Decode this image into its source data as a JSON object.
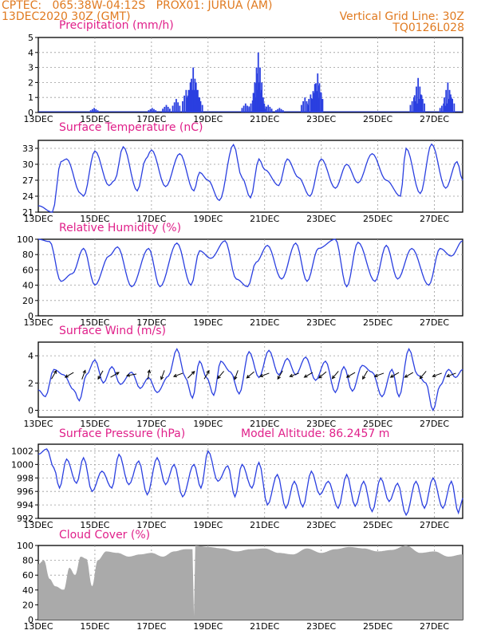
{
  "header": {
    "line1_left": "CPTEC:   065:38W-04:12S   PROX01: JURUA (AM)",
    "line2_left": "13DEC2020 30Z (GMT)",
    "line2_right": "Vertical Grid Line: 30Z",
    "line3_right": "TQ0126L028"
  },
  "colors": {
    "line": "#2a3fe0",
    "bar": "#2a3fe0",
    "cloud": "#aaaaaa",
    "title": "#e0208a",
    "header": "#e07a20",
    "grid": "#999999"
  },
  "x_labels": [
    "13DEC",
    "15DEC",
    "17DEC",
    "19DEC",
    "21DEC",
    "23DEC",
    "25DEC",
    "27DEC"
  ],
  "x_range_days": [
    0,
    15
  ],
  "chart_data": [
    {
      "type": "bar",
      "title": "Precipitation (mm/h)",
      "ylim": [
        0,
        5
      ],
      "yticks": [
        0,
        1,
        2,
        3,
        4,
        5
      ],
      "x_unit": "days since 13DEC",
      "events": [
        [
          1.95,
          0.3
        ],
        [
          4.0,
          0.3
        ],
        [
          4.5,
          0.5
        ],
        [
          4.85,
          0.9
        ],
        [
          5.2,
          1.5
        ],
        [
          5.35,
          2.0
        ],
        [
          5.45,
          3.0
        ],
        [
          5.55,
          2.0
        ],
        [
          5.65,
          1.0
        ],
        [
          7.3,
          0.6
        ],
        [
          7.55,
          0.8
        ],
        [
          7.7,
          2.6
        ],
        [
          7.75,
          4.0
        ],
        [
          7.8,
          2.0
        ],
        [
          7.9,
          0.8
        ],
        [
          8.1,
          0.5
        ],
        [
          8.5,
          0.3
        ],
        [
          9.4,
          1.0
        ],
        [
          9.6,
          1.2
        ],
        [
          9.75,
          1.9
        ],
        [
          9.85,
          2.6
        ],
        [
          9.9,
          1.8
        ],
        [
          13.25,
          1.0
        ],
        [
          13.4,
          2.3
        ],
        [
          13.5,
          1.2
        ],
        [
          14.3,
          0.6
        ],
        [
          14.45,
          2.0
        ],
        [
          14.55,
          1.2
        ]
      ]
    },
    {
      "type": "line",
      "title": "Surface Temperature (nC)",
      "ylim": [
        21,
        34.5
      ],
      "yticks": [
        21,
        24,
        27,
        30,
        33
      ],
      "x_unit": "days since 13DEC",
      "anchors": [
        [
          0,
          22.2
        ],
        [
          0.5,
          21.0
        ],
        [
          0.8,
          30.5
        ],
        [
          1.0,
          31.0
        ],
        [
          1.5,
          24.5
        ],
        [
          1.6,
          24.0
        ],
        [
          2.0,
          32.5
        ],
        [
          2.5,
          26.0
        ],
        [
          2.7,
          27.0
        ],
        [
          3.0,
          33.3
        ],
        [
          3.5,
          25.0
        ],
        [
          3.8,
          31.0
        ],
        [
          4.0,
          32.7
        ],
        [
          4.5,
          25.8
        ],
        [
          5.0,
          32.0
        ],
        [
          5.5,
          25.0
        ],
        [
          5.7,
          28.5
        ],
        [
          6.0,
          27.0
        ],
        [
          6.4,
          23.2
        ],
        [
          6.9,
          33.7
        ],
        [
          7.2,
          27.5
        ],
        [
          7.5,
          23.7
        ],
        [
          7.8,
          31.0
        ],
        [
          8.0,
          29.0
        ],
        [
          8.5,
          26.0
        ],
        [
          8.8,
          31.0
        ],
        [
          9.2,
          27.5
        ],
        [
          9.6,
          24.0
        ],
        [
          10.0,
          31.0
        ],
        [
          10.5,
          25.5
        ],
        [
          10.9,
          30.0
        ],
        [
          11.3,
          26.5
        ],
        [
          11.8,
          32.0
        ],
        [
          12.3,
          27.0
        ],
        [
          12.8,
          24.0
        ],
        [
          13.0,
          33.0
        ],
        [
          13.5,
          24.5
        ],
        [
          13.9,
          33.8
        ],
        [
          14.4,
          25.5
        ],
        [
          14.8,
          30.5
        ],
        [
          15.0,
          27.0
        ]
      ]
    },
    {
      "type": "line",
      "title": "Relative Humidity (%)",
      "ylim": [
        0,
        100
      ],
      "yticks": [
        0,
        20,
        40,
        60,
        80,
        100
      ],
      "x_unit": "days since 13DEC",
      "anchors": [
        [
          0,
          100
        ],
        [
          0.4,
          97
        ],
        [
          0.8,
          45
        ],
        [
          1.2,
          55
        ],
        [
          1.6,
          88
        ],
        [
          2.0,
          40
        ],
        [
          2.5,
          78
        ],
        [
          2.8,
          90
        ],
        [
          3.3,
          38
        ],
        [
          3.9,
          88
        ],
        [
          4.3,
          38
        ],
        [
          4.9,
          95
        ],
        [
          5.4,
          40
        ],
        [
          5.7,
          85
        ],
        [
          6.1,
          75
        ],
        [
          6.6,
          98
        ],
        [
          7.0,
          48
        ],
        [
          7.4,
          38
        ],
        [
          7.7,
          70
        ],
        [
          8.1,
          92
        ],
        [
          8.6,
          48
        ],
        [
          9.1,
          95
        ],
        [
          9.5,
          45
        ],
        [
          9.9,
          88
        ],
        [
          10.5,
          100
        ],
        [
          10.9,
          38
        ],
        [
          11.3,
          96
        ],
        [
          11.9,
          45
        ],
        [
          12.3,
          92
        ],
        [
          12.7,
          48
        ],
        [
          13.2,
          88
        ],
        [
          13.8,
          40
        ],
        [
          14.2,
          88
        ],
        [
          14.6,
          78
        ],
        [
          15.0,
          98
        ]
      ]
    },
    {
      "type": "line",
      "title": "Surface Wind (m/s)",
      "ylim": [
        -0.5,
        5
      ],
      "yticks": [
        0,
        2,
        4
      ],
      "x_unit": "days since 13DEC",
      "anchors": [
        [
          0,
          1.5
        ],
        [
          0.25,
          1.0
        ],
        [
          0.55,
          3.0
        ],
        [
          0.9,
          2.6
        ],
        [
          1.25,
          1.5
        ],
        [
          1.45,
          0.7
        ],
        [
          1.7,
          2.6
        ],
        [
          2.0,
          3.7
        ],
        [
          2.3,
          2.0
        ],
        [
          2.6,
          3.2
        ],
        [
          2.9,
          1.9
        ],
        [
          3.3,
          2.8
        ],
        [
          3.6,
          1.6
        ],
        [
          3.9,
          2.4
        ],
        [
          4.2,
          1.3
        ],
        [
          4.6,
          2.5
        ],
        [
          4.9,
          4.5
        ],
        [
          5.2,
          2.4
        ],
        [
          5.45,
          0.9
        ],
        [
          5.7,
          3.6
        ],
        [
          5.95,
          2.4
        ],
        [
          6.2,
          1.1
        ],
        [
          6.45,
          3.6
        ],
        [
          6.8,
          2.8
        ],
        [
          7.1,
          1.2
        ],
        [
          7.45,
          4.3
        ],
        [
          7.8,
          2.4
        ],
        [
          8.15,
          4.4
        ],
        [
          8.5,
          2.6
        ],
        [
          8.8,
          3.8
        ],
        [
          9.1,
          2.6
        ],
        [
          9.45,
          3.9
        ],
        [
          9.8,
          2.2
        ],
        [
          10.15,
          3.6
        ],
        [
          10.5,
          1.3
        ],
        [
          10.8,
          3.2
        ],
        [
          11.1,
          1.4
        ],
        [
          11.45,
          3.3
        ],
        [
          11.8,
          2.8
        ],
        [
          12.15,
          1.0
        ],
        [
          12.5,
          3.0
        ],
        [
          12.75,
          1.0
        ],
        [
          13.1,
          4.5
        ],
        [
          13.4,
          2.6
        ],
        [
          13.7,
          2.0
        ],
        [
          13.95,
          0.0
        ],
        [
          14.2,
          1.8
        ],
        [
          14.5,
          3.0
        ],
        [
          14.75,
          2.4
        ],
        [
          15.0,
          3.0
        ]
      ],
      "arrow_x": [
        0.55,
        1.1,
        1.6,
        2.2,
        2.7,
        3.3,
        3.9,
        4.4,
        4.95,
        5.4,
        5.95,
        6.45,
        7.0,
        7.5,
        8.0,
        8.55,
        9.05,
        9.55,
        10.05,
        10.5,
        11.05,
        11.55,
        12.05,
        12.6,
        13.1,
        13.6,
        14.1,
        14.6
      ],
      "arrow_dir_deg": [
        60,
        210,
        70,
        240,
        30,
        190,
        80,
        250,
        200,
        45,
        60,
        230,
        250,
        220,
        200,
        240,
        200,
        210,
        220,
        230,
        210,
        240,
        200,
        210,
        210,
        230,
        200,
        200
      ]
    },
    {
      "type": "line",
      "title": "Surface Pressure (hPa)",
      "annotation": "Model Altitude: 86.2457 m",
      "ylim": [
        992,
        1003
      ],
      "yticks": [
        992,
        994,
        996,
        998,
        1000,
        1002
      ],
      "x_unit": "days since 13DEC",
      "anchors": [
        [
          0,
          1001.5
        ],
        [
          0.3,
          1002.3
        ],
        [
          0.55,
          999.5
        ],
        [
          0.75,
          996.5
        ],
        [
          1.0,
          1000.8
        ],
        [
          1.35,
          997.2
        ],
        [
          1.6,
          1001.0
        ],
        [
          1.9,
          996.0
        ],
        [
          2.25,
          999.0
        ],
        [
          2.6,
          996.5
        ],
        [
          2.85,
          1001.5
        ],
        [
          3.2,
          997.0
        ],
        [
          3.55,
          1000.5
        ],
        [
          3.85,
          995.5
        ],
        [
          4.2,
          1001.0
        ],
        [
          4.5,
          997.0
        ],
        [
          4.8,
          1000.0
        ],
        [
          5.1,
          995.2
        ],
        [
          5.5,
          1000.0
        ],
        [
          5.75,
          996.5
        ],
        [
          6.0,
          1002.0
        ],
        [
          6.35,
          997.5
        ],
        [
          6.7,
          999.8
        ],
        [
          6.95,
          995.2
        ],
        [
          7.2,
          1000.0
        ],
        [
          7.55,
          996.5
        ],
        [
          7.8,
          1000.3
        ],
        [
          8.1,
          994.0
        ],
        [
          8.45,
          998.5
        ],
        [
          8.75,
          993.5
        ],
        [
          9.05,
          997.5
        ],
        [
          9.35,
          993.7
        ],
        [
          9.65,
          999.0
        ],
        [
          9.95,
          995.5
        ],
        [
          10.25,
          997.5
        ],
        [
          10.6,
          993.5
        ],
        [
          10.9,
          998.5
        ],
        [
          11.2,
          993.8
        ],
        [
          11.5,
          997.5
        ],
        [
          11.8,
          993.0
        ],
        [
          12.1,
          998.0
        ],
        [
          12.4,
          994.5
        ],
        [
          12.7,
          997.2
        ],
        [
          13.0,
          992.5
        ],
        [
          13.35,
          997.5
        ],
        [
          13.65,
          993.5
        ],
        [
          13.95,
          998.0
        ],
        [
          14.3,
          993.5
        ],
        [
          14.6,
          997.5
        ],
        [
          14.85,
          992.8
        ],
        [
          15.0,
          995.0
        ]
      ]
    },
    {
      "type": "area",
      "title": "Cloud Cover (%)",
      "ylim": [
        0,
        100
      ],
      "yticks": [
        0,
        20,
        40,
        60,
        80,
        100
      ],
      "x_unit": "days since 13DEC",
      "anchors": [
        [
          0,
          75
        ],
        [
          0.2,
          80
        ],
        [
          0.4,
          55
        ],
        [
          0.6,
          45
        ],
        [
          0.9,
          40
        ],
        [
          1.1,
          70
        ],
        [
          1.3,
          60
        ],
        [
          1.5,
          85
        ],
        [
          1.7,
          82
        ],
        [
          1.9,
          45
        ],
        [
          2.1,
          80
        ],
        [
          2.4,
          92
        ],
        [
          2.8,
          90
        ],
        [
          3.2,
          85
        ],
        [
          3.6,
          88
        ],
        [
          4.0,
          90
        ],
        [
          4.4,
          85
        ],
        [
          4.8,
          92
        ],
        [
          5.2,
          95
        ],
        [
          5.45,
          95
        ],
        [
          5.5,
          5
        ],
        [
          5.55,
          100
        ],
        [
          6.0,
          98
        ],
        [
          6.5,
          96
        ],
        [
          7.0,
          92
        ],
        [
          7.5,
          95
        ],
        [
          8.0,
          96
        ],
        [
          8.5,
          90
        ],
        [
          9.0,
          88
        ],
        [
          9.5,
          96
        ],
        [
          10.0,
          90
        ],
        [
          10.5,
          95
        ],
        [
          11.0,
          98
        ],
        [
          11.5,
          96
        ],
        [
          12.0,
          92
        ],
        [
          12.5,
          94
        ],
        [
          13.0,
          100
        ],
        [
          13.5,
          90
        ],
        [
          14.0,
          92
        ],
        [
          14.5,
          85
        ],
        [
          15.0,
          88
        ]
      ]
    }
  ]
}
